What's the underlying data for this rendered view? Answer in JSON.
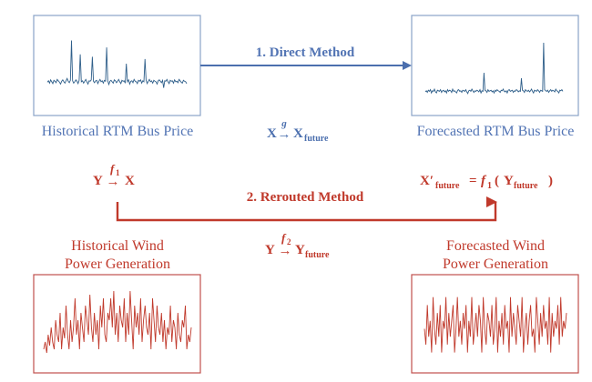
{
  "colors": {
    "blue": "#4b6fae",
    "blue_text": "#5274b4",
    "red": "#c0392b",
    "box_blue": "#8aa4c8",
    "box_red": "#c0504d",
    "series_blue": "#2f5f8a",
    "series_red": "#c0392b"
  },
  "direct": {
    "label": "1. Direct Method",
    "formula_lhs": "X",
    "formula_arrow": "→",
    "formula_fn": "g",
    "formula_rhs": "X",
    "formula_rhs_sub": "future"
  },
  "rerouted": {
    "label": "2. Rerouted Method",
    "left_lhs": "Y",
    "left_fn": "f",
    "left_fn_sub": "1",
    "left_rhs": "X",
    "middle_lhs": "Y",
    "middle_fn": "f",
    "middle_fn_sub": "2",
    "middle_rhs": "Y",
    "middle_rhs_sub": "future",
    "right_lhs": "X′",
    "right_lhs_sub": "future",
    "right_eq": "=",
    "right_fn": "f",
    "right_fn_sub": "1",
    "right_open": "(",
    "right_arg": "Y",
    "right_arg_sub": "future",
    "right_close": ")"
  },
  "boxes": {
    "hist_price": {
      "caption": "Historical RTM Bus Price"
    },
    "fore_price": {
      "caption": "Forecasted RTM Bus Price"
    },
    "hist_wind": {
      "caption_line1": "Historical Wind",
      "caption_line2": "Power Generation"
    },
    "fore_wind": {
      "caption_line1": "Forecasted Wind",
      "caption_line2": "Power Generation"
    }
  },
  "chart_data": [
    {
      "type": "line",
      "title": "",
      "series": [
        {
          "values": [
            0,
            0.3,
            -0.2,
            0.5,
            0.1,
            -0.3,
            0.4,
            0.2,
            -0.1,
            0.6,
            0.3,
            0,
            -0.4,
            0.2,
            0.5,
            0.1,
            -0.2,
            0.3,
            0.8,
            0.2,
            -0.1,
            0.4,
            9,
            0.3,
            -0.2,
            0.1,
            0.5,
            0.2,
            -0.3,
            0.4,
            6,
            0.1,
            0.3,
            -0.2,
            0.2,
            0.6,
            0.1,
            -0.4,
            0.3,
            0.2,
            0.5,
            5.5,
            0.2,
            -0.1,
            0.3,
            0.4,
            -0.3,
            0.2,
            0.6,
            0.1,
            0.3,
            -0.2,
            0.4,
            0.2,
            7.5,
            0.3,
            -0.5,
            0.2,
            0.4,
            0.1,
            -0.2,
            0.5,
            0.3,
            -0.1,
            0.2,
            0.6,
            0.1,
            -0.3,
            0.4,
            0.2,
            0.3,
            -0.2,
            4,
            0.1,
            0.5,
            -0.4,
            0.2,
            0.3,
            -0.1,
            0.6,
            0.2,
            0.1,
            -0.3,
            0.4,
            0.2,
            0.5,
            -0.2,
            0.3,
            0.1,
            5,
            0.4,
            -0.3,
            0.2,
            0.6,
            0.1,
            0.3,
            -0.2,
            0.4,
            0.2,
            0.1,
            -0.4,
            0.3,
            0.5,
            0.2,
            -0.1,
            0.4,
            -1.2,
            0.3,
            0.2,
            0.6,
            0.1,
            -0.3,
            0.4,
            0.2,
            0.3,
            -0.2,
            0.5,
            0.1,
            0.2,
            -0.1,
            0.6,
            0.3,
            0,
            -0.2,
            0.4,
            0.2,
            0.1,
            -0.3
          ]
        }
      ]
    },
    {
      "type": "line",
      "title": "",
      "series": [
        {
          "values": [
            0,
            0.2,
            -0.1,
            0.3,
            0.1,
            0.4,
            -0.2,
            0.2,
            0.1,
            0.5,
            0,
            -0.2,
            0.3,
            0.2,
            0.1,
            0.4,
            -0.1,
            0.2,
            0.3,
            0,
            0.2,
            -0.2,
            0.4,
            0.1,
            0.3,
            0.2,
            -0.1,
            0.5,
            0.1,
            0.2,
            0,
            -0.2,
            0.3,
            0.4,
            0.1,
            0.2,
            -0.1,
            0.3,
            0.2,
            0.1,
            0.4,
            0,
            -0.3,
            0.2,
            0.3,
            0.1,
            0.5,
            0.2,
            -0.1,
            0.2,
            0.1,
            0.3,
            0.2,
            0,
            0.4,
            -0.2,
            0.2,
            0.1,
            3.5,
            0.3,
            0.2,
            -0.1,
            0.4,
            0.1,
            0.2,
            0.3,
            0,
            0.2,
            -0.2,
            0.3,
            0.1,
            0.4,
            0.2,
            0.1,
            -0.1,
            0.3,
            0.2,
            0.5,
            0.1,
            0,
            0.2,
            -0.2,
            0.3,
            0.4,
            0.1,
            0.2,
            0.3,
            -0.1,
            0.2,
            0.1,
            0.4,
            0.3,
            0,
            0.2,
            0.1,
            2.5,
            0.3,
            0.2,
            -0.1,
            0.4,
            0.2,
            0.1,
            0.3,
            0,
            0.2,
            0.5,
            0.1,
            -0.2,
            0.3,
            0.2,
            0.1,
            0.4,
            0.2,
            -0.1,
            0.3,
            0.2,
            0.1,
            9,
            0.4,
            0.2,
            0.1,
            0.3,
            -0.1,
            0.2,
            0.4,
            0.1,
            0.3,
            0.2,
            0,
            0.5,
            0.2,
            0.1,
            -0.2,
            0.3,
            0.2,
            0.4,
            0.1
          ]
        }
      ]
    },
    {
      "type": "line",
      "title": "",
      "series": [
        {
          "values": [
            2,
            3,
            1.5,
            4,
            2.5,
            5,
            3,
            2,
            6,
            4,
            3,
            7,
            2,
            5,
            3.5,
            8,
            4,
            2,
            6,
            3,
            5,
            9,
            4,
            6,
            2,
            7,
            5,
            3,
            8,
            6,
            4,
            9.5,
            5,
            3,
            7,
            4,
            6,
            2,
            8,
            5,
            9,
            4,
            3,
            7,
            6,
            9,
            5,
            10,
            4,
            7,
            3,
            8,
            6,
            5,
            9,
            3,
            7,
            4,
            10,
            6,
            2,
            8,
            5,
            7,
            4,
            9,
            3,
            6,
            8,
            5,
            4,
            7,
            2,
            9,
            6,
            3,
            8,
            5,
            4,
            7,
            3,
            6,
            2,
            5,
            4,
            8,
            3,
            6,
            5,
            2,
            7,
            4,
            3,
            6,
            5,
            8,
            2,
            4,
            3,
            5
          ]
        }
      ]
    },
    {
      "type": "line",
      "title": "",
      "series": [
        {
          "values": [
            5,
            3,
            8,
            4,
            6,
            2,
            9,
            5,
            3,
            7,
            4,
            8,
            2,
            6,
            5,
            9,
            3,
            7,
            4,
            6,
            8,
            2,
            5,
            9,
            4,
            6,
            3,
            7,
            5,
            8,
            2,
            6,
            4,
            9,
            3,
            5,
            7,
            4,
            8,
            6,
            2,
            9,
            5,
            3,
            7,
            6,
            4,
            8,
            3,
            5,
            9,
            2,
            6,
            4,
            7,
            3,
            8,
            5,
            6,
            2,
            9,
            4,
            7,
            5,
            3,
            8,
            6,
            4,
            9,
            2,
            5,
            7,
            3,
            6,
            8,
            4,
            5,
            2,
            9,
            6,
            3,
            7,
            4,
            8,
            5,
            6,
            3,
            9,
            2,
            7,
            4,
            6,
            5,
            8,
            3,
            9,
            4,
            6,
            5,
            7
          ]
        }
      ]
    }
  ]
}
